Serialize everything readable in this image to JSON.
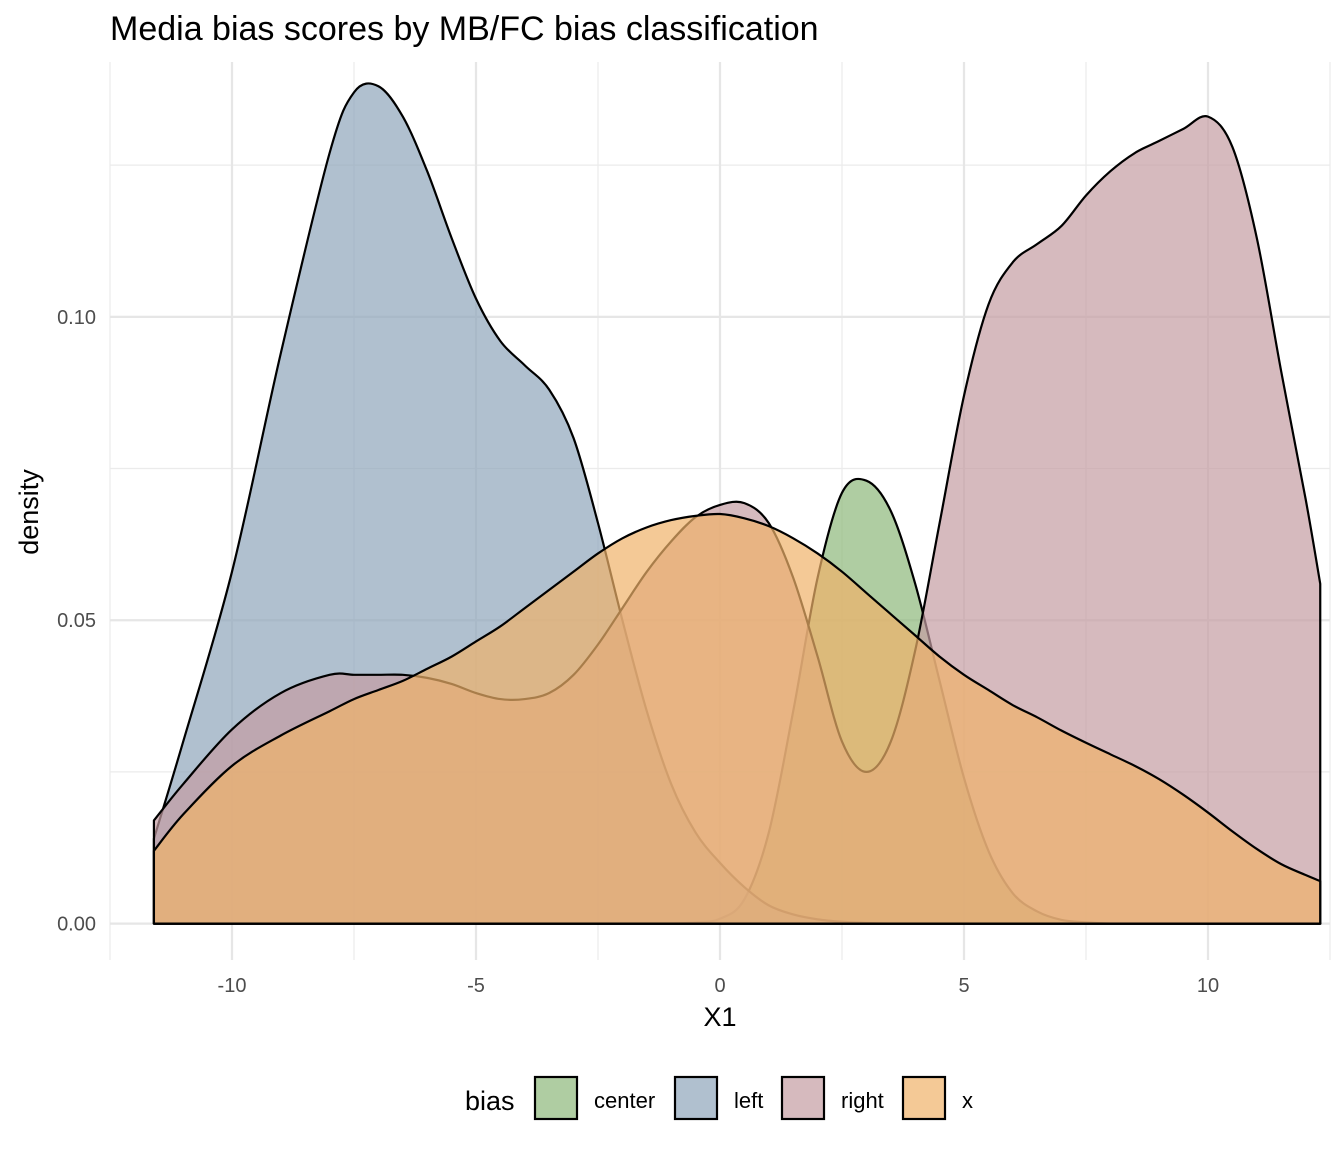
{
  "chart_data": {
    "type": "area",
    "title": "Media bias scores by MB/FC bias classification",
    "xlabel": "X1",
    "ylabel": "density",
    "xlim": [
      -12.5,
      12.5
    ],
    "ylim": [
      -0.006,
      0.142
    ],
    "x_ticks": [
      -10,
      -5,
      0,
      5,
      10
    ],
    "x_tick_labels": [
      "-10",
      "-5",
      "0",
      "5",
      "10"
    ],
    "y_ticks": [
      0.0,
      0.05,
      0.1
    ],
    "y_tick_labels": [
      "0.00",
      "0.05",
      "0.10"
    ],
    "grid": true,
    "legend": {
      "title": "bias",
      "position": "bottom"
    },
    "x": [
      -11.6,
      -11,
      -10,
      -9,
      -8,
      -7.5,
      -7,
      -6.5,
      -6,
      -5.5,
      -5,
      -4.5,
      -4,
      -3.5,
      -3,
      -2.5,
      -2,
      -1.5,
      -1,
      -0.5,
      0,
      0.5,
      1,
      1.5,
      2,
      2.5,
      3,
      3.5,
      4,
      4.5,
      5,
      5.5,
      6,
      6.5,
      7,
      7.5,
      8,
      8.5,
      9,
      9.5,
      10,
      10.5,
      11,
      11.5,
      12,
      12.3
    ],
    "series": [
      {
        "name": "center",
        "color": "#8db87a",
        "values": [
          0.0,
          0.0,
          0.0,
          0.0,
          0.0,
          0.0,
          0.0,
          0.0,
          0.0,
          0.0,
          0.0,
          0.0,
          0.0,
          0.0,
          0.0,
          0.0,
          0.0,
          0.0,
          0.0,
          0.0002,
          0.0008,
          0.004,
          0.015,
          0.035,
          0.057,
          0.071,
          0.073,
          0.068,
          0.056,
          0.04,
          0.024,
          0.012,
          0.005,
          0.002,
          0.0006,
          0.0002,
          0.0,
          0.0,
          0.0,
          0.0,
          0.0,
          0.0,
          0.0,
          0.0,
          0.0,
          0.0
        ]
      },
      {
        "name": "left",
        "color": "#8fa5ba",
        "values": [
          0.014,
          0.03,
          0.058,
          0.094,
          0.127,
          0.137,
          0.138,
          0.133,
          0.124,
          0.113,
          0.103,
          0.096,
          0.092,
          0.088,
          0.08,
          0.066,
          0.05,
          0.035,
          0.023,
          0.015,
          0.01,
          0.006,
          0.003,
          0.0015,
          0.0007,
          0.0003,
          0.0001,
          0.0,
          0.0,
          0.0,
          0.0,
          0.0,
          0.0,
          0.0,
          0.0,
          0.0,
          0.0,
          0.0,
          0.0,
          0.0,
          0.0,
          0.0,
          0.0,
          0.0,
          0.0,
          0.0
        ]
      },
      {
        "name": "right",
        "color": "#c49ca3",
        "values": [
          0.017,
          0.023,
          0.032,
          0.038,
          0.041,
          0.041,
          0.041,
          0.041,
          0.0405,
          0.0395,
          0.038,
          0.037,
          0.037,
          0.038,
          0.041,
          0.046,
          0.052,
          0.058,
          0.063,
          0.067,
          0.069,
          0.0693,
          0.066,
          0.057,
          0.044,
          0.03,
          0.025,
          0.03,
          0.045,
          0.066,
          0.087,
          0.102,
          0.109,
          0.112,
          0.115,
          0.12,
          0.124,
          0.127,
          0.129,
          0.131,
          0.133,
          0.128,
          0.113,
          0.091,
          0.07,
          0.056
        ]
      },
      {
        "name": "x",
        "color": "#f0b26a",
        "values": [
          0.012,
          0.018,
          0.026,
          0.031,
          0.035,
          0.037,
          0.0385,
          0.04,
          0.042,
          0.044,
          0.0465,
          0.049,
          0.052,
          0.055,
          0.058,
          0.061,
          0.0635,
          0.0653,
          0.0665,
          0.0672,
          0.0675,
          0.0668,
          0.0655,
          0.0635,
          0.061,
          0.058,
          0.0545,
          0.051,
          0.0475,
          0.044,
          0.041,
          0.0385,
          0.036,
          0.034,
          0.0318,
          0.0298,
          0.0279,
          0.026,
          0.0238,
          0.0212,
          0.0183,
          0.0152,
          0.0123,
          0.0098,
          0.008,
          0.007
        ]
      }
    ]
  }
}
